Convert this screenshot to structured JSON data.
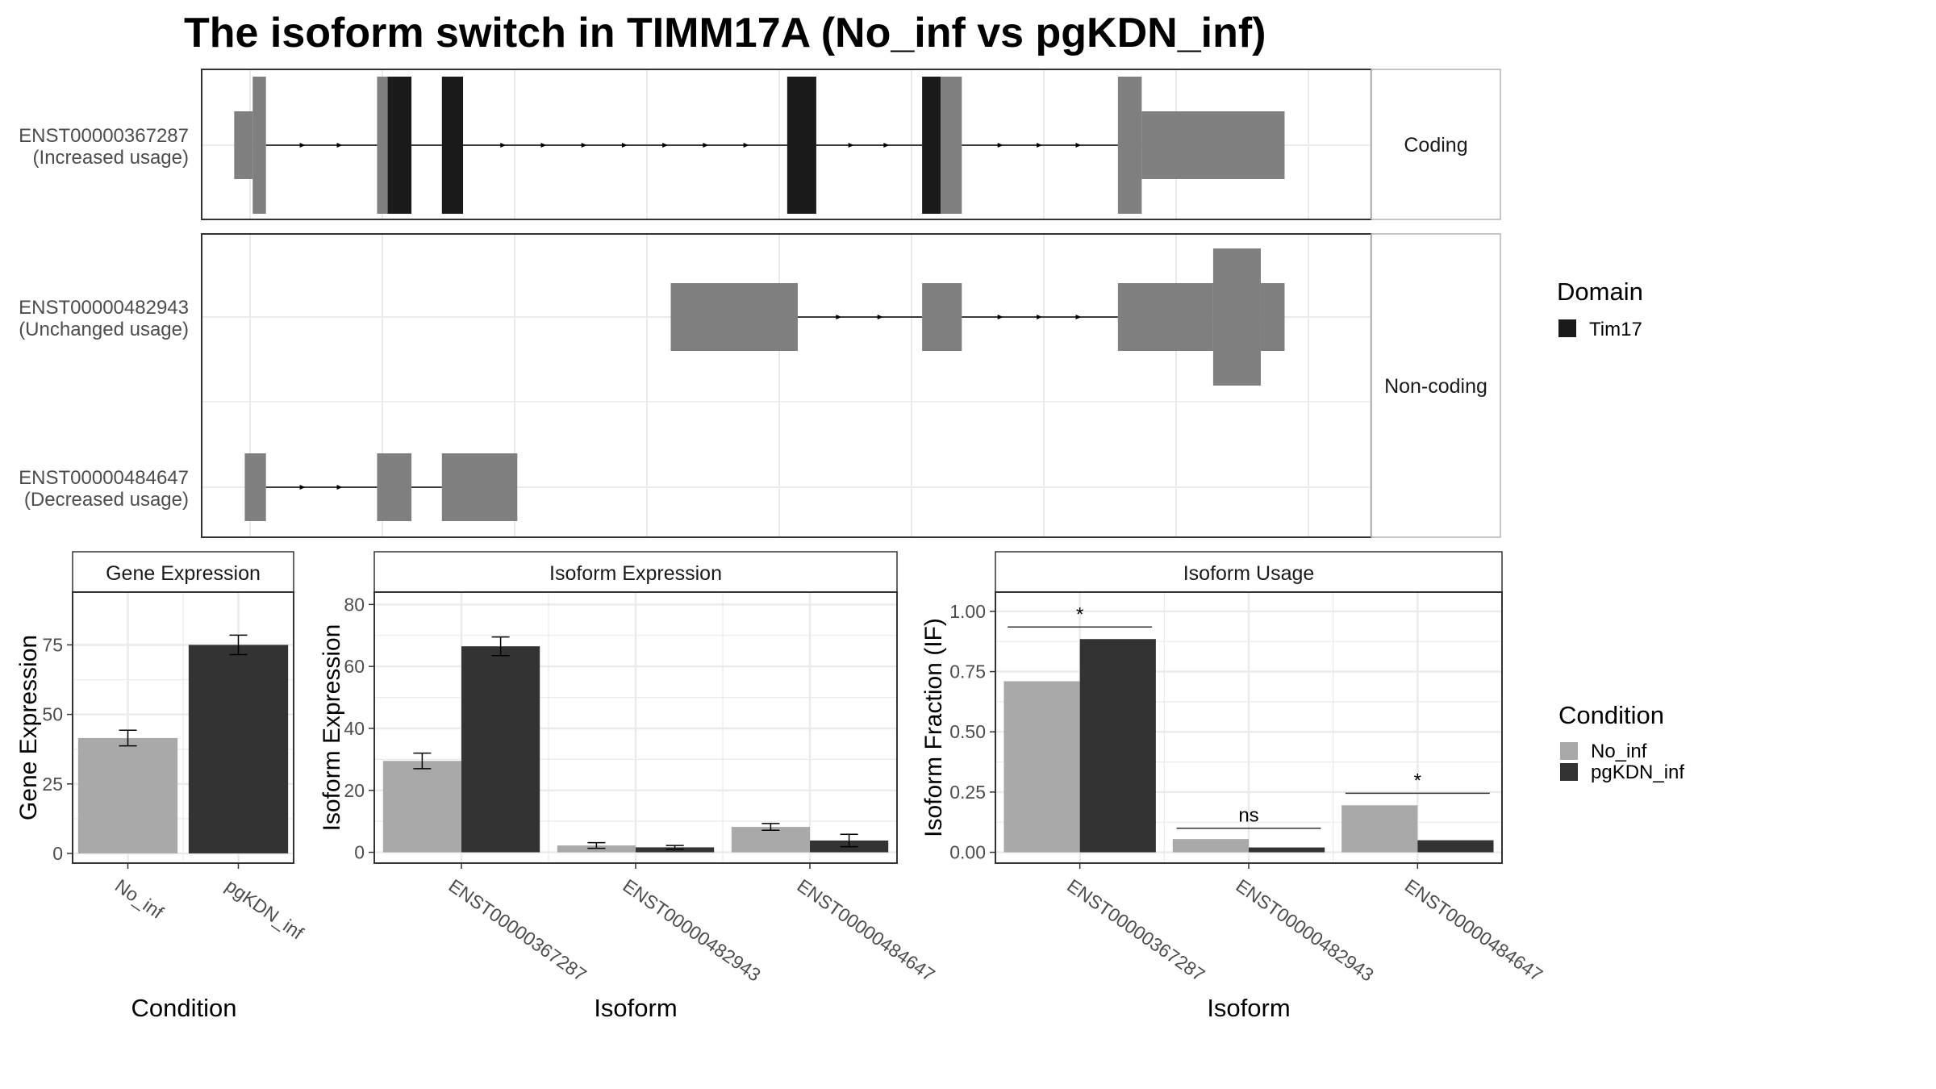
{
  "title": "The isoform switch in TIMM17A (No_inf vs pgKDN_inf)",
  "colors": {
    "exon": "#7f7f7f",
    "domain": "#1a1a1a",
    "no_inf": "#a9a9a9",
    "pgkdn_inf": "#333333",
    "grid": "#ebebeb",
    "panel_border": "#333333",
    "strip_border": "#b3b3b3",
    "text": "#4d4d4d"
  },
  "structure": {
    "facets": [
      "Coding",
      "Non-coding"
    ],
    "transcripts": [
      {
        "id": "ENST00000367287",
        "usage": "(Increased usage)",
        "facet": "Coding",
        "exons": [
          {
            "start": 0.38,
            "end": 0.52,
            "kind": "utr"
          },
          {
            "start": 0.52,
            "end": 0.62,
            "kind": "cds"
          },
          {
            "start": 1.46,
            "end": 1.54,
            "kind": "cds"
          },
          {
            "start": 1.54,
            "end": 1.72,
            "kind": "domain"
          },
          {
            "start": 1.95,
            "end": 2.11,
            "kind": "domain"
          },
          {
            "start": 4.56,
            "end": 4.78,
            "kind": "domain"
          },
          {
            "start": 5.58,
            "end": 5.72,
            "kind": "domain"
          },
          {
            "start": 5.72,
            "end": 5.88,
            "kind": "cds"
          },
          {
            "start": 7.06,
            "end": 7.24,
            "kind": "cds"
          },
          {
            "start": 7.24,
            "end": 8.32,
            "kind": "utr"
          }
        ]
      },
      {
        "id": "ENST00000482943",
        "usage": "(Unchanged usage)",
        "facet": "Non-coding",
        "exons": [
          {
            "start": 3.68,
            "end": 4.64,
            "kind": "utr"
          },
          {
            "start": 5.58,
            "end": 5.88,
            "kind": "utr"
          },
          {
            "start": 7.06,
            "end": 7.78,
            "kind": "utr"
          },
          {
            "start": 7.78,
            "end": 8.14,
            "kind": "tall"
          },
          {
            "start": 8.14,
            "end": 8.32,
            "kind": "utr"
          }
        ]
      },
      {
        "id": "ENST00000484647",
        "usage": "(Decreased usage)",
        "facet": "Non-coding",
        "exons": [
          {
            "start": 0.46,
            "end": 0.62,
            "kind": "utr"
          },
          {
            "start": 1.46,
            "end": 1.72,
            "kind": "utr"
          },
          {
            "start": 1.95,
            "end": 2.52,
            "kind": "utr"
          }
        ]
      }
    ]
  },
  "legends": {
    "domain": {
      "title": "Domain",
      "items": [
        {
          "label": "Tim17",
          "color": "#1a1a1a"
        }
      ]
    },
    "condition": {
      "title": "Condition",
      "items": [
        {
          "label": "No_inf",
          "color": "#a9a9a9"
        },
        {
          "label": "pgKDN_inf",
          "color": "#333333"
        }
      ]
    }
  },
  "chart_data": [
    {
      "type": "bar",
      "strip": "Gene Expression",
      "xlabel": "Condition",
      "ylabel": "Gene Expression",
      "categories": [
        "No_inf",
        "pgKDN_inf"
      ],
      "values": [
        41.5,
        75.0
      ],
      "errors": [
        2.8,
        3.5
      ],
      "ylim": [
        -3.5,
        94
      ],
      "yticks": [
        0,
        25,
        50,
        75
      ]
    },
    {
      "type": "bar",
      "strip": "Isoform Expression",
      "xlabel": "Isoform",
      "ylabel": "Isoform Expression",
      "categories": [
        "ENST00000367287",
        "ENST00000482943",
        "ENST00000484647"
      ],
      "series": [
        {
          "name": "No_inf",
          "values": [
            29.5,
            2.2,
            8.2
          ],
          "errors": [
            2.5,
            0.9,
            1.1
          ]
        },
        {
          "name": "pgKDN_inf",
          "values": [
            66.5,
            1.6,
            3.8
          ],
          "errors": [
            3.0,
            0.6,
            2.0
          ]
        }
      ],
      "ylim": [
        -3.5,
        84
      ],
      "yticks": [
        0,
        20,
        40,
        60,
        80
      ]
    },
    {
      "type": "bar",
      "strip": "Isoform Usage",
      "xlabel": "Isoform",
      "ylabel": "Isoform Fraction (IF)",
      "categories": [
        "ENST00000367287",
        "ENST00000482943",
        "ENST00000484647"
      ],
      "series": [
        {
          "name": "No_inf",
          "values": [
            0.71,
            0.055,
            0.195
          ]
        },
        {
          "name": "pgKDN_inf",
          "values": [
            0.885,
            0.02,
            0.05
          ]
        }
      ],
      "significance": [
        "*",
        "ns",
        "*"
      ],
      "significance_levels": [
        0.935,
        0.1,
        0.245
      ],
      "ylim": [
        -0.045,
        1.08
      ],
      "yticks": [
        0.0,
        0.25,
        0.5,
        0.75,
        1.0
      ],
      "ytick_labels": [
        "0.00",
        "0.25",
        "0.50",
        "0.75",
        "1.00"
      ]
    }
  ]
}
